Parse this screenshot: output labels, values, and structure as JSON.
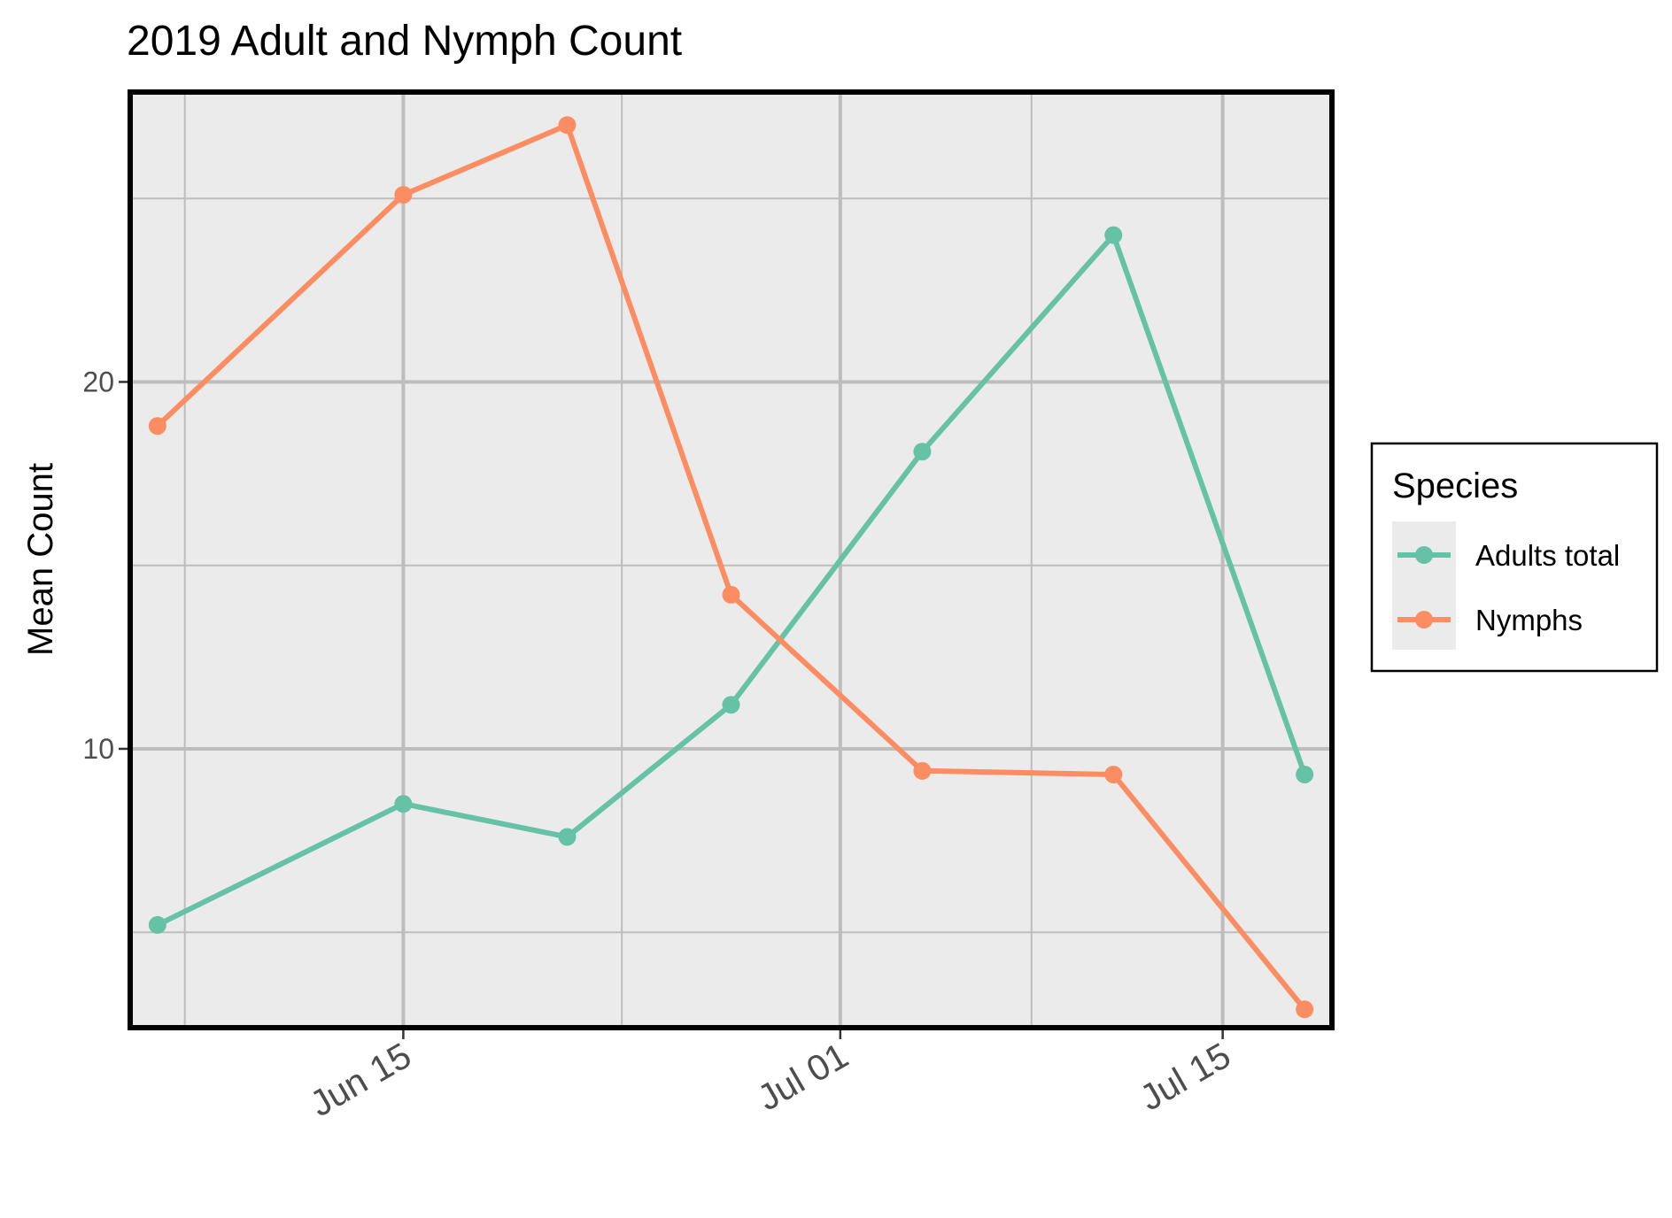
{
  "chart_data": {
    "type": "line",
    "title": "2019 Adult and Nymph Count",
    "xlabel": "",
    "ylabel": "Mean Count",
    "x_axis": {
      "type": "date",
      "range": [
        "2019-06-05",
        "2019-07-19"
      ],
      "tick_dates": [
        "2019-06-15",
        "2019-07-01",
        "2019-07-15"
      ],
      "tick_labels": [
        "Jun 15",
        "Jul 01",
        "Jul 15"
      ],
      "minor_dates": [
        "2019-06-07",
        "2019-06-23",
        "2019-07-08"
      ]
    },
    "y_axis": {
      "range": [
        2.4,
        27.9
      ],
      "ticks": [
        10,
        20
      ],
      "minor_ticks": [
        5,
        15,
        25
      ]
    },
    "grid": true,
    "legend": {
      "title": "Species",
      "position": "right"
    },
    "series": [
      {
        "name": "Adults total",
        "color": "#66c2a5",
        "points": [
          {
            "x": "2019-06-06",
            "y": 5.2
          },
          {
            "x": "2019-06-15",
            "y": 8.5
          },
          {
            "x": "2019-06-21",
            "y": 7.6
          },
          {
            "x": "2019-06-27",
            "y": 11.2
          },
          {
            "x": "2019-07-04",
            "y": 18.1
          },
          {
            "x": "2019-07-11",
            "y": 24.0
          },
          {
            "x": "2019-07-18",
            "y": 9.3
          }
        ]
      },
      {
        "name": "Nymphs",
        "color": "#fc8d62",
        "points": [
          {
            "x": "2019-06-06",
            "y": 18.8
          },
          {
            "x": "2019-06-15",
            "y": 25.1
          },
          {
            "x": "2019-06-21",
            "y": 27.0
          },
          {
            "x": "2019-06-27",
            "y": 14.2
          },
          {
            "x": "2019-07-04",
            "y": 9.4
          },
          {
            "x": "2019-07-11",
            "y": 9.3
          },
          {
            "x": "2019-07-18",
            "y": 2.9
          }
        ]
      }
    ]
  }
}
